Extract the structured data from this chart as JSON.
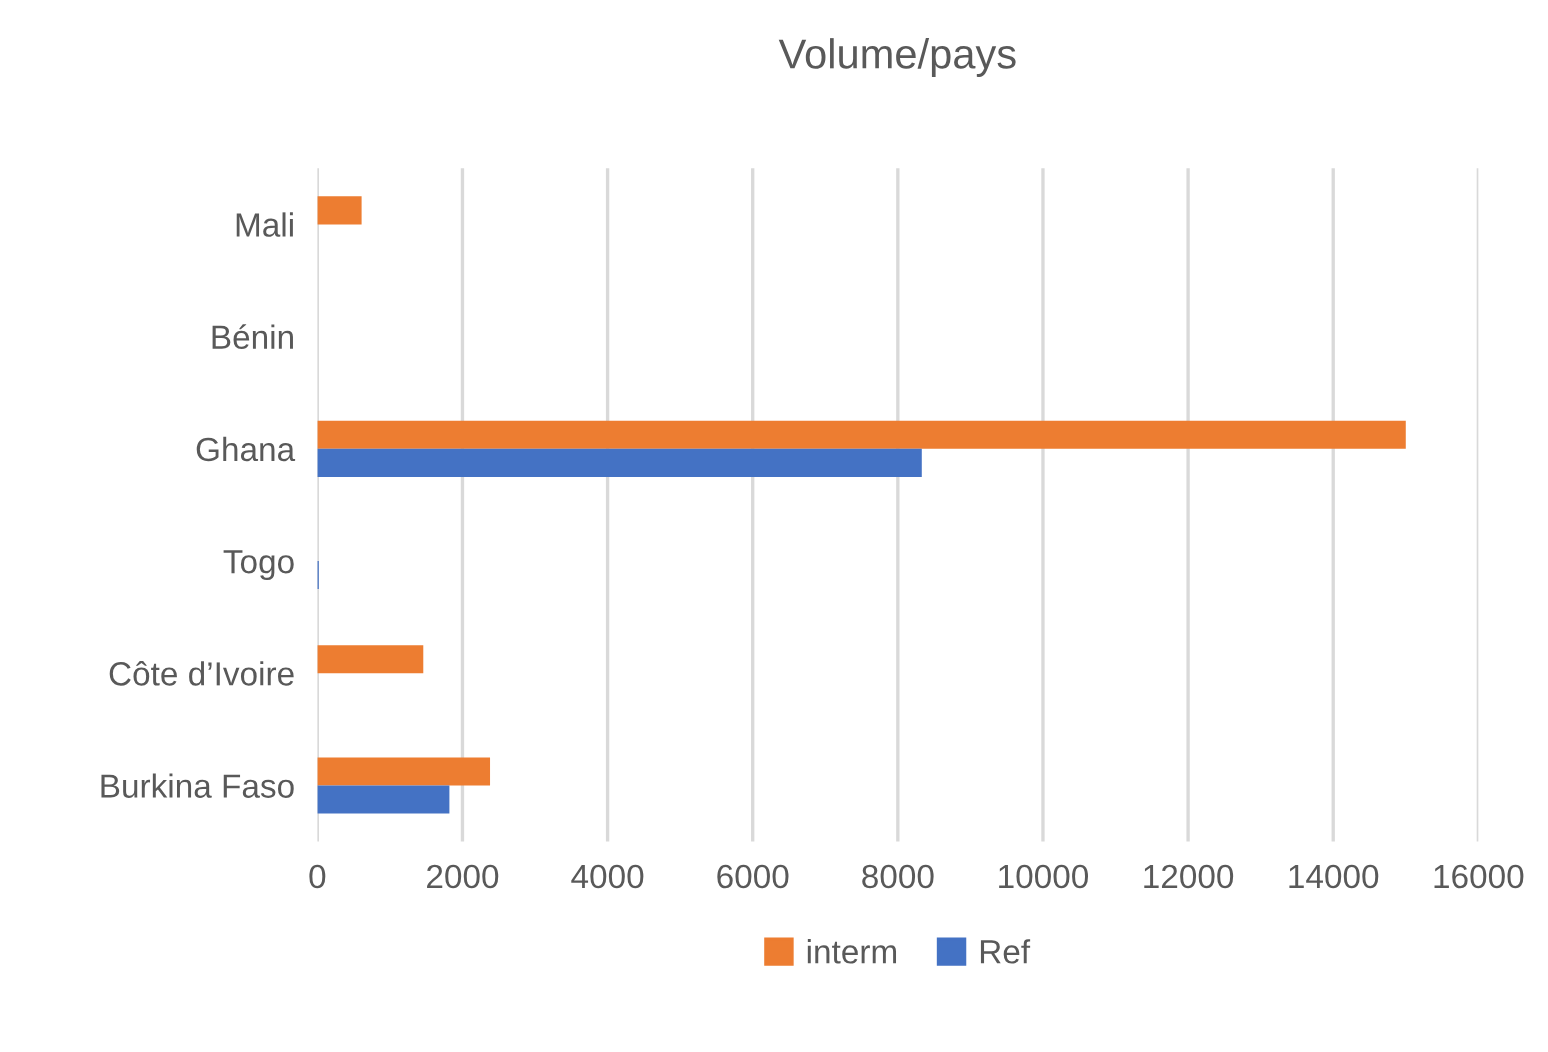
{
  "chart_data": {
    "type": "bar",
    "orientation": "horizontal",
    "title": "Volume/pays",
    "categories": [
      "Mali",
      "Bénin",
      "Ghana",
      "Togo",
      "Côte d’Ivoire",
      "Burkina Faso"
    ],
    "series": [
      {
        "name": "interm",
        "color": "#ed7d31",
        "values": [
          610,
          0,
          15000,
          0,
          1460,
          2380
        ]
      },
      {
        "name": "Ref",
        "color": "#4472c4",
        "values": [
          0,
          0,
          8330,
          20,
          null,
          1820
        ]
      }
    ],
    "xlim": [
      0,
      16000
    ],
    "xticks": [
      0,
      2000,
      4000,
      6000,
      8000,
      10000,
      12000,
      14000,
      16000
    ],
    "grid": "x",
    "legend": "bottom"
  }
}
